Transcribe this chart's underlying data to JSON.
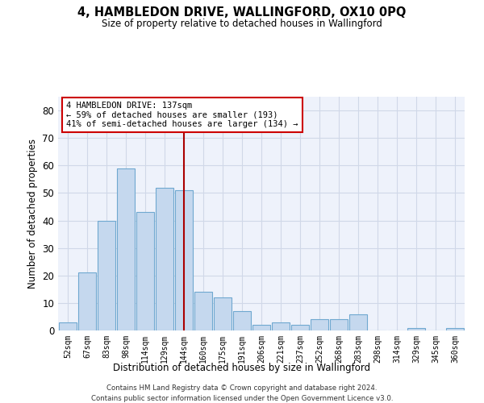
{
  "title": "4, HAMBLEDON DRIVE, WALLINGFORD, OX10 0PQ",
  "subtitle": "Size of property relative to detached houses in Wallingford",
  "xlabel": "Distribution of detached houses by size in Wallingford",
  "ylabel": "Number of detached properties",
  "categories": [
    "52sqm",
    "67sqm",
    "83sqm",
    "98sqm",
    "114sqm",
    "129sqm",
    "144sqm",
    "160sqm",
    "175sqm",
    "191sqm",
    "206sqm",
    "221sqm",
    "237sqm",
    "252sqm",
    "268sqm",
    "283sqm",
    "298sqm",
    "314sqm",
    "329sqm",
    "345sqm",
    "360sqm"
  ],
  "values": [
    3,
    21,
    40,
    59,
    43,
    52,
    51,
    14,
    12,
    7,
    2,
    3,
    2,
    4,
    4,
    6,
    0,
    0,
    1,
    0,
    1
  ],
  "bar_color": "#c5d8ee",
  "bar_edge_color": "#6fa8d0",
  "background_color": "#eef2fb",
  "grid_color": "#d0d8e8",
  "ylim": [
    0,
    85
  ],
  "yticks": [
    0,
    10,
    20,
    30,
    40,
    50,
    60,
    70,
    80
  ],
  "property_label": "4 HAMBLEDON DRIVE: 137sqm",
  "arrow_left_text": "← 59% of detached houses are smaller (193)",
  "arrow_right_text": "41% of semi-detached houses are larger (134) →",
  "vline_position": 6.0,
  "vline_color": "#aa0000",
  "annotation_box_color": "#cc0000",
  "footer1": "Contains HM Land Registry data © Crown copyright and database right 2024.",
  "footer2": "Contains public sector information licensed under the Open Government Licence v3.0."
}
